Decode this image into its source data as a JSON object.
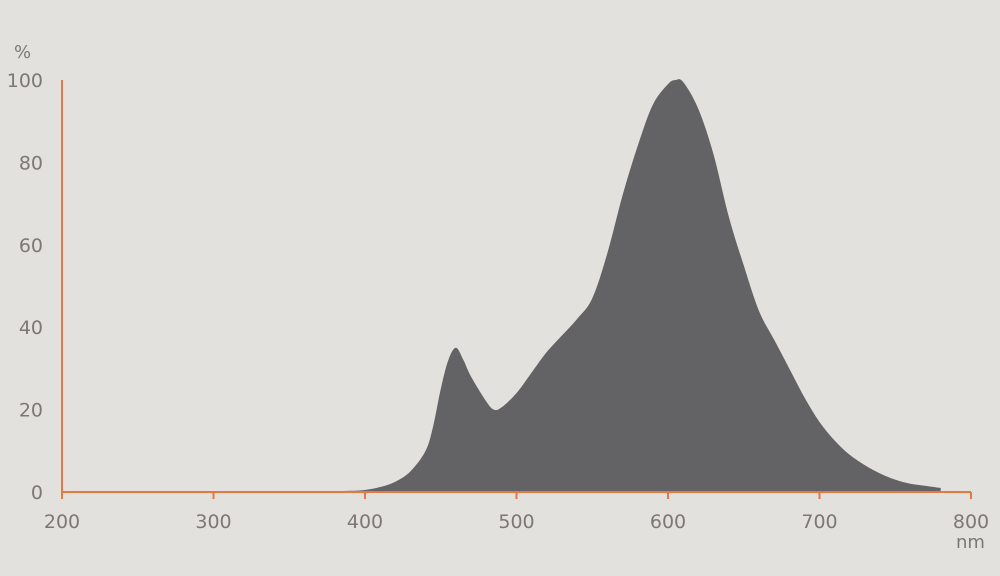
{
  "chart_data": {
    "type": "area",
    "title": "",
    "xlabel": "nm",
    "ylabel": "%",
    "xlim": [
      200,
      800
    ],
    "ylim": [
      0,
      100
    ],
    "x_ticks": [
      "200",
      "300",
      "400",
      "500",
      "600",
      "700",
      "800"
    ],
    "y_ticks": [
      "0",
      "20",
      "40",
      "60",
      "80",
      "100"
    ],
    "grid": false,
    "colors": {
      "fill": "#636264",
      "axis": "#e9773f",
      "background": "#e3e1de",
      "text": "#7b7876"
    },
    "series": [
      {
        "x": [
          380,
          390,
          400,
          410,
          420,
          430,
          440,
          445,
          450,
          455,
          460,
          465,
          470,
          480,
          485,
          490,
          500,
          510,
          520,
          530,
          540,
          550,
          560,
          570,
          580,
          590,
          600,
          605,
          610,
          620,
          630,
          640,
          650,
          660,
          670,
          680,
          690,
          700,
          710,
          720,
          730,
          740,
          750,
          760,
          770,
          780
        ],
        "y": [
          0.2,
          0.3,
          0.5,
          1.2,
          2.5,
          5,
          10,
          16,
          25,
          32,
          35,
          32,
          28,
          22,
          20,
          20.5,
          24,
          29,
          34,
          38,
          42,
          47,
          58,
          72,
          84,
          94,
          99,
          100,
          99.5,
          93,
          82,
          67,
          55,
          44,
          37,
          30,
          23,
          17,
          12.5,
          9,
          6.5,
          4.5,
          3,
          2,
          1.5,
          1
        ]
      }
    ]
  }
}
